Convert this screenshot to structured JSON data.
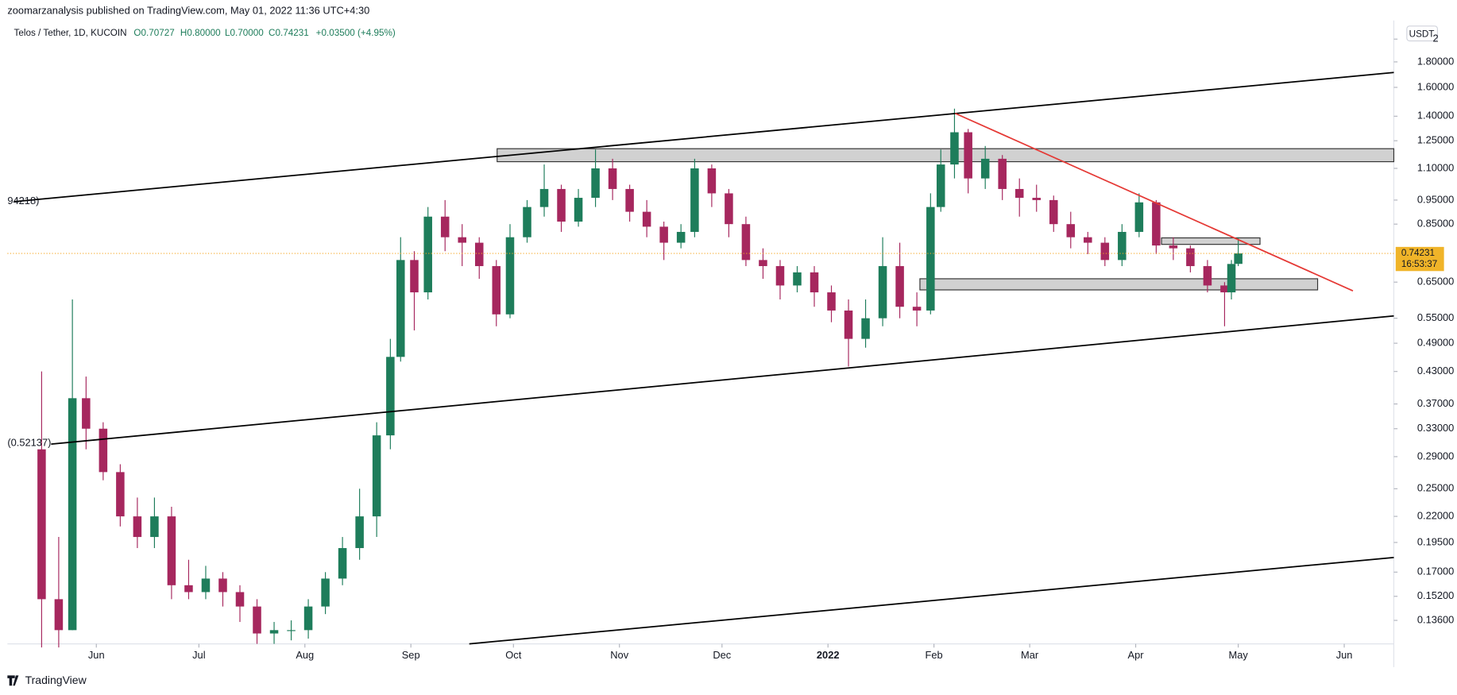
{
  "header": {
    "publisher": "zoomarzanalysis published on TradingView.com, May 01, 2022 11:36 UTC+4:30",
    "symbol": "Telos / Tether, 1D, KUCOIN",
    "open": "O0.70727",
    "high": "H0.80000",
    "low": "L0.70000",
    "close": "C0.74231",
    "change": "+0.03500 (+4.95%)"
  },
  "annotations": {
    "upper_line_label": "94218)",
    "lower_line_label": "(0.52137)",
    "countdown": "16:53:37",
    "currency": "USDT",
    "brand": "TradingView"
  },
  "chart_data": {
    "type": "candlestick",
    "up_color": "#1e7d5b",
    "down_color": "#a6275e",
    "log_scale": true,
    "grid": false,
    "x": [
      -230,
      -225,
      -221,
      -217,
      -212,
      -207,
      -202,
      -197,
      -192,
      -187,
      -182,
      -177,
      -172,
      -167,
      -162,
      -157,
      -152,
      -147,
      -142,
      -137,
      -132,
      -128,
      -125,
      -121,
      -117,
      -112,
      -107,
      -102,
      -97,
      -93,
      -88,
      -83,
      -78,
      -73,
      -68,
      -63,
      -58,
      -53,
      -48,
      -43,
      -39,
      -34,
      -29,
      -24,
      -19,
      -14,
      -9,
      -4,
      1,
      6,
      11,
      16,
      21,
      26,
      30,
      33,
      37,
      41,
      46,
      51,
      56,
      61,
      66,
      71,
      76,
      81,
      86,
      91,
      96,
      101,
      106,
      111,
      116,
      118,
      120
    ],
    "open": [
      0.3,
      0.15,
      0.13,
      0.38,
      0.33,
      0.27,
      0.22,
      0.2,
      0.22,
      0.16,
      0.155,
      0.165,
      0.155,
      0.145,
      0.128,
      0.13,
      0.13,
      0.145,
      0.165,
      0.19,
      0.22,
      0.32,
      0.46,
      0.72,
      0.62,
      0.88,
      0.8,
      0.78,
      0.7,
      0.56,
      0.8,
      0.92,
      1.0,
      0.86,
      0.96,
      1.1,
      1.0,
      0.9,
      0.84,
      0.78,
      0.82,
      1.1,
      0.98,
      0.85,
      0.72,
      0.7,
      0.64,
      0.68,
      0.62,
      0.57,
      0.5,
      0.55,
      0.7,
      0.58,
      0.57,
      0.92,
      1.12,
      1.3,
      1.05,
      1.15,
      1.0,
      0.96,
      0.95,
      0.85,
      0.8,
      0.78,
      0.72,
      0.82,
      0.94,
      0.77,
      0.76,
      0.7,
      0.64,
      0.62,
      0.70727
    ],
    "high": [
      0.43,
      0.2,
      0.6,
      0.42,
      0.34,
      0.28,
      0.24,
      0.24,
      0.23,
      0.18,
      0.175,
      0.17,
      0.16,
      0.15,
      0.135,
      0.136,
      0.15,
      0.17,
      0.2,
      0.25,
      0.34,
      0.5,
      0.8,
      0.75,
      0.92,
      0.95,
      0.85,
      0.8,
      0.72,
      0.85,
      0.95,
      1.12,
      1.02,
      1.0,
      1.2,
      1.15,
      1.02,
      0.95,
      0.86,
      0.85,
      1.15,
      1.12,
      1.0,
      0.88,
      0.76,
      0.72,
      0.7,
      0.7,
      0.64,
      0.6,
      0.6,
      0.8,
      0.78,
      0.62,
      0.98,
      1.2,
      1.45,
      1.32,
      1.22,
      1.17,
      1.05,
      1.02,
      0.97,
      0.9,
      0.82,
      0.8,
      0.85,
      0.98,
      0.95,
      0.8,
      0.77,
      0.72,
      0.65,
      0.72,
      0.8
    ],
    "low": [
      0.12,
      0.12,
      0.13,
      0.3,
      0.26,
      0.21,
      0.19,
      0.19,
      0.15,
      0.15,
      0.15,
      0.145,
      0.135,
      0.122,
      0.122,
      0.124,
      0.125,
      0.14,
      0.16,
      0.18,
      0.2,
      0.3,
      0.45,
      0.52,
      0.6,
      0.75,
      0.7,
      0.66,
      0.53,
      0.55,
      0.78,
      0.88,
      0.82,
      0.84,
      0.92,
      0.95,
      0.86,
      0.8,
      0.72,
      0.76,
      0.8,
      0.92,
      0.8,
      0.7,
      0.66,
      0.6,
      0.62,
      0.58,
      0.54,
      0.44,
      0.48,
      0.53,
      0.55,
      0.53,
      0.56,
      0.9,
      1.05,
      0.98,
      1.0,
      0.95,
      0.88,
      0.9,
      0.82,
      0.76,
      0.74,
      0.7,
      0.7,
      0.8,
      0.74,
      0.72,
      0.68,
      0.62,
      0.53,
      0.6,
      0.7
    ],
    "close": [
      0.15,
      0.13,
      0.38,
      0.33,
      0.27,
      0.22,
      0.2,
      0.22,
      0.16,
      0.155,
      0.165,
      0.155,
      0.145,
      0.128,
      0.13,
      0.13,
      0.145,
      0.165,
      0.19,
      0.22,
      0.32,
      0.46,
      0.72,
      0.62,
      0.88,
      0.8,
      0.78,
      0.7,
      0.56,
      0.8,
      0.92,
      1.0,
      0.86,
      0.96,
      1.1,
      1.0,
      0.9,
      0.84,
      0.78,
      0.82,
      1.1,
      0.98,
      0.85,
      0.72,
      0.7,
      0.64,
      0.68,
      0.62,
      0.57,
      0.5,
      0.55,
      0.7,
      0.58,
      0.57,
      0.92,
      1.12,
      1.3,
      1.05,
      1.15,
      1.0,
      0.96,
      0.95,
      0.85,
      0.8,
      0.78,
      0.72,
      0.82,
      0.94,
      0.77,
      0.76,
      0.7,
      0.64,
      0.62,
      0.707,
      0.74231
    ],
    "xlim": [
      -240,
      165.5
    ],
    "xticks": [
      {
        "value": -214,
        "label": "Jun"
      },
      {
        "value": -184,
        "label": "Jul"
      },
      {
        "value": -153,
        "label": "Aug"
      },
      {
        "value": -122,
        "label": "Sep"
      },
      {
        "value": -92,
        "label": "Oct"
      },
      {
        "value": -61,
        "label": "Nov"
      },
      {
        "value": -31,
        "label": "Dec"
      },
      {
        "value": 0,
        "label": "2022"
      },
      {
        "value": 31,
        "label": "Feb"
      },
      {
        "value": 59,
        "label": "Mar"
      },
      {
        "value": 90,
        "label": "Apr"
      },
      {
        "value": 120,
        "label": "May"
      },
      {
        "value": 151,
        "label": "Jun"
      }
    ],
    "ylim": [
      0.122,
      2.18
    ],
    "yticks": [
      2,
      {
        "value": 1.8,
        "label": "1.80000"
      },
      {
        "value": 1.6,
        "label": "1.60000"
      },
      {
        "value": 1.4,
        "label": "1.40000"
      },
      {
        "value": 1.25,
        "label": "1.25000"
      },
      {
        "value": 1.1,
        "label": "1.10000"
      },
      {
        "value": 0.95,
        "label": "0.95000"
      },
      {
        "value": 0.85,
        "label": "0.85000"
      },
      {
        "value": 0.65,
        "label": "0.65000"
      },
      {
        "value": 0.55,
        "label": "0.55000"
      },
      {
        "value": 0.49,
        "label": "0.49000"
      },
      {
        "value": 0.43,
        "label": "0.43000"
      },
      {
        "value": 0.37,
        "label": "0.37000"
      },
      {
        "value": 0.33,
        "label": "0.33000"
      },
      {
        "value": 0.29,
        "label": "0.29000"
      },
      {
        "value": 0.25,
        "label": "0.25000"
      },
      {
        "value": 0.22,
        "label": "0.22000"
      },
      {
        "value": 0.195,
        "label": "0.19500"
      },
      {
        "value": 0.17,
        "label": "0.17000"
      },
      {
        "value": 0.152,
        "label": "0.15200"
      },
      {
        "value": 0.136,
        "label": "0.13600"
      }
    ]
  }
}
